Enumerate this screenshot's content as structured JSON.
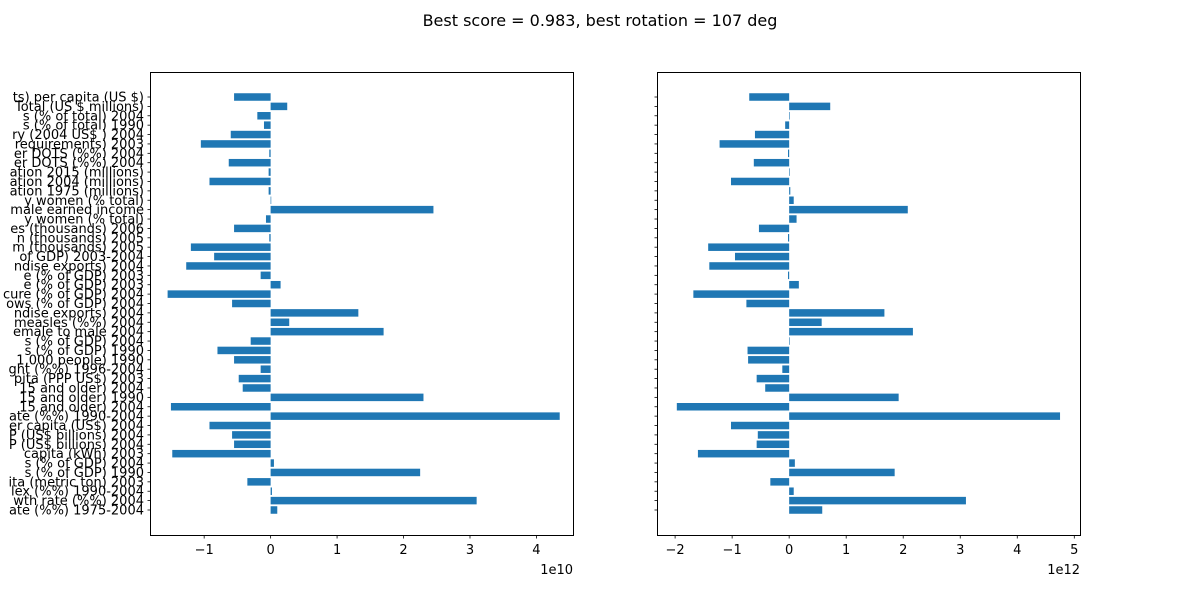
{
  "figure": {
    "title": "Best score = 0.983, best rotation = 107 deg"
  },
  "chart_data": [
    {
      "type": "bar",
      "orientation": "horizontal",
      "xlim": [
        -18000000000.0,
        45500000000.0
      ],
      "x_ticks": [
        -10000000000.0,
        0,
        10000000000.0,
        20000000000.0,
        30000000000.0,
        40000000000.0
      ],
      "x_tick_labels": [
        "−1",
        "0",
        "1",
        "2",
        "3",
        "4"
      ],
      "offset_label": "1e10",
      "color": "#1f77b4",
      "categories": [
        "ate (%%) 1975-2004",
        "wth rate (%%) 2004",
        "lex (%%) 1990-2004",
        "ita (metric ton) 2003",
        "s (% of GDP) 1990",
        "s (% of GDP) 2004",
        "capita (kWh) 2003",
        "P (US$ billions) 2004",
        "P (US$ billions) 2004",
        "er capita (US$) 2004",
        "ate (%%) 1990-2004",
        "15 and older) 2004",
        "15 and older) 1990",
        "15 and older) 2004",
        "pita (PPP US$) 2003",
        "ght (%%) 1996-2004",
        "1,000 people) 1990",
        "s (% of GDP) 1990",
        "s (% of GDP) 2004",
        "emale to male 2004",
        "measles (%%) 2004",
        "ndise exports) 2004",
        "ows (% of GDP) 2004",
        "cure (% of GDP) 2004",
        "e (% of GDP) 2003",
        "e (% of GDP) 2003",
        "ndise exports) 2004",
        "of GDP) 2003-2004",
        "m (thousands) 2005",
        "n (thousands) 2005",
        "es (thousands) 2006",
        "y women (% total)",
        "male earned income",
        "y women (% total)",
        "ation 1975 (millions)",
        "ation 2004 (millions)",
        "ation 2015 (millions)",
        "er DOTS (%%) 2004",
        "er DOTS (%%) 2004",
        "requirements) 2003",
        "ry (2004 US$ ) 2004",
        "s (% of total) 1990",
        "s (% of total) 2004",
        "Total (US $ millions)",
        "ts) per capita (US $)"
      ],
      "values": [
        1000000000.0,
        31000000000.0,
        200000000.0,
        -3500000000.0,
        22500000000.0,
        500000000.0,
        -14800000000.0,
        -5500000000.0,
        -5800000000.0,
        -9200000000.0,
        43500000000.0,
        -15000000000.0,
        23000000000.0,
        -4200000000.0,
        -4800000000.0,
        -1500000000.0,
        -5500000000.0,
        -8000000000.0,
        -3000000000.0,
        17000000000.0,
        2800000000.0,
        13200000000.0,
        -5800000000.0,
        -15500000000.0,
        1500000000.0,
        -1500000000.0,
        -12700000000.0,
        -8500000000.0,
        -12000000000.0,
        -200000000.0,
        -5500000000.0,
        -700000000.0,
        24500000000.0,
        0.0,
        -300000000.0,
        -9200000000.0,
        -300000000.0,
        -6300000000.0,
        -200000000.0,
        -10500000000.0,
        -6000000000.0,
        -1000000000.0,
        -2000000000.0,
        2500000000.0,
        -5500000000.0
      ]
    },
    {
      "type": "bar",
      "orientation": "horizontal",
      "xlim": [
        -2300000000000.0,
        5100000000000.0
      ],
      "x_ticks": [
        -2000000000000.0,
        -1000000000000.0,
        0,
        1000000000000.0,
        2000000000000.0,
        3000000000000.0,
        4000000000000.0,
        5000000000000.0
      ],
      "x_tick_labels": [
        "−2",
        "−1",
        "0",
        "1",
        "2",
        "3",
        "4",
        "5"
      ],
      "offset_label": "1e12",
      "color": "#1f77b4",
      "values": [
        580000000000.0,
        3100000000000.0,
        80000000000.0,
        -330000000000.0,
        1850000000000.0,
        100000000000.0,
        -1600000000000.0,
        -570000000000.0,
        -550000000000.0,
        -1020000000000.0,
        4750000000000.0,
        -1970000000000.0,
        1920000000000.0,
        -420000000000.0,
        -570000000000.0,
        -120000000000.0,
        -720000000000.0,
        -730000000000.0,
        0.0,
        2170000000000.0,
        570000000000.0,
        1670000000000.0,
        -750000000000.0,
        -1680000000000.0,
        170000000000.0,
        -20000000000.0,
        -1400000000000.0,
        -950000000000.0,
        -1420000000000.0,
        -20000000000.0,
        -530000000000.0,
        130000000000.0,
        2080000000000.0,
        80000000000.0,
        20000000000.0,
        -1020000000000.0,
        0.0,
        -620000000000.0,
        -20000000000.0,
        -1220000000000.0,
        -600000000000.0,
        -70000000000.0,
        0.0,
        720000000000.0,
        -700000000000.0
      ]
    }
  ]
}
